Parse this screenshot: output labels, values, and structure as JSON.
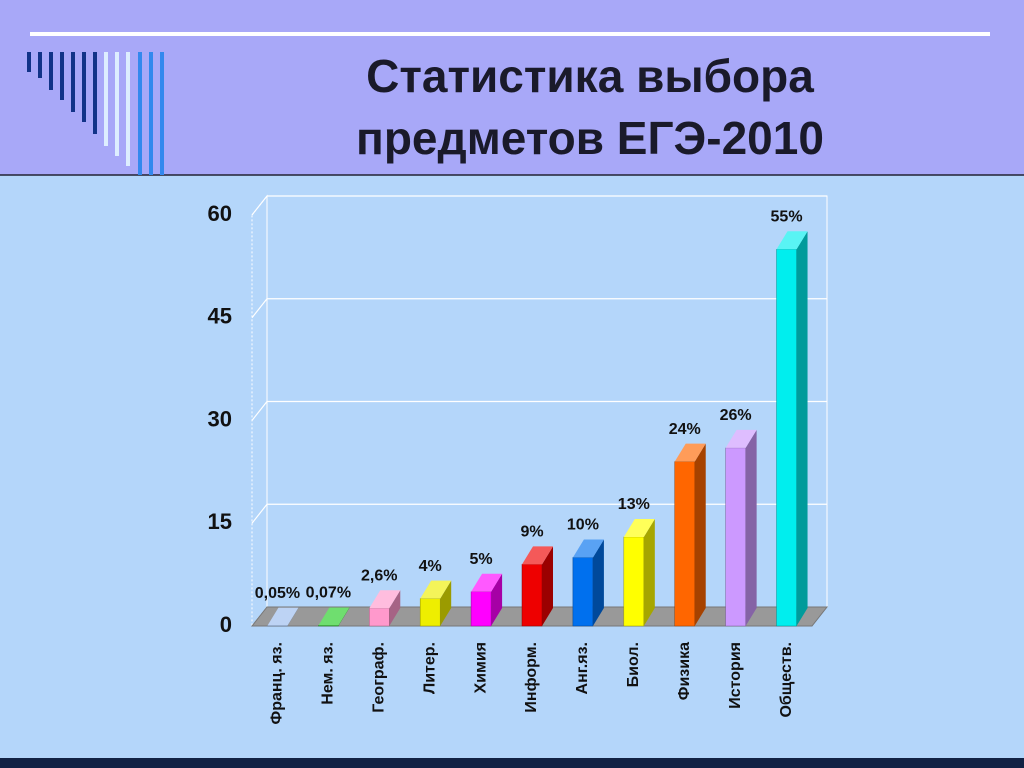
{
  "chart_data": {
    "type": "bar3d",
    "title": "Статистика выбора предметов ЕГЭ-2010",
    "categories": [
      "Франц. яз.",
      "Нем. яз.",
      "Географ.",
      "Литер.",
      "Химия",
      "Информ.",
      "Анг.яз.",
      "Биол.",
      "Физика",
      "История",
      "Обществ."
    ],
    "values": [
      0.05,
      0.07,
      2.6,
      4,
      5,
      9,
      10,
      13,
      24,
      26,
      55
    ],
    "value_labels": [
      "0,05%",
      "0,07%",
      "2,6%",
      "4%",
      "5%",
      "9%",
      "10%",
      "13%",
      "24%",
      "26%",
      "55%"
    ],
    "colors": [
      "#99bbee",
      "#22cc22",
      "#ff99cc",
      "#eeee00",
      "#ff00ff",
      "#ee0000",
      "#0070ee",
      "#ffff00",
      "#ff6600",
      "#cc99ff",
      "#00eeee"
    ],
    "ylim": [
      0,
      60
    ],
    "yticks": [
      0,
      15,
      30,
      45,
      60
    ],
    "grid": true
  }
}
